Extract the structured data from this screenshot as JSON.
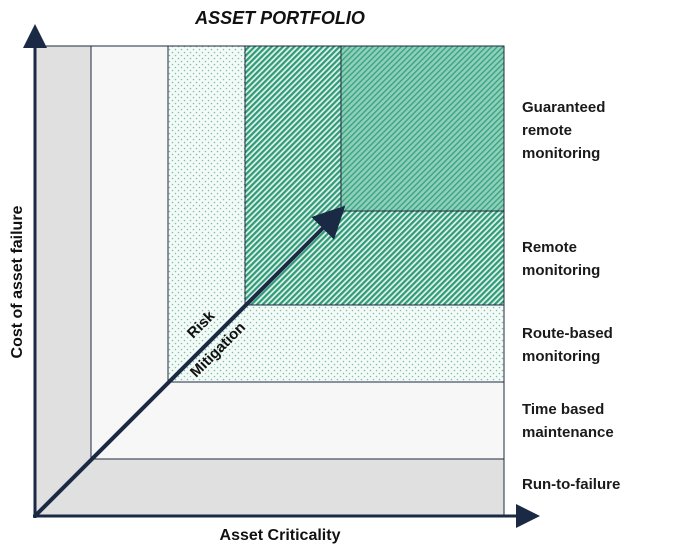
{
  "title": "ASSET PORTFOLIO",
  "axes": {
    "x_label": "Asset Criticality",
    "y_label": "Cost of asset failure"
  },
  "arrow_label": {
    "line1": "Risk",
    "line2": "Mitigation"
  },
  "tiers": [
    {
      "label": "Guaranteed remote monitoring",
      "lines": [
        "Guaranteed",
        "remote",
        "monitoring"
      ]
    },
    {
      "label": "Remote monitoring",
      "lines": [
        "Remote",
        "monitoring"
      ]
    },
    {
      "label": "Route-based monitoring",
      "lines": [
        "Route-based",
        "monitoring"
      ]
    },
    {
      "label": "Time based maintenance",
      "lines": [
        "Time based",
        "maintenance"
      ]
    },
    {
      "label": "Run-to-failure",
      "lines": [
        "Run-to-failure"
      ]
    }
  ],
  "colors": {
    "run_to_failure": "#e0e0e0",
    "time_based": "#f7f7f7",
    "route_based_dots": "#7fbfa8",
    "remote_hatch": "#2f9a78",
    "guaranteed_fill": "#7fc8b0",
    "axis": "#1b2a44",
    "border": "#1e2b3c"
  }
}
